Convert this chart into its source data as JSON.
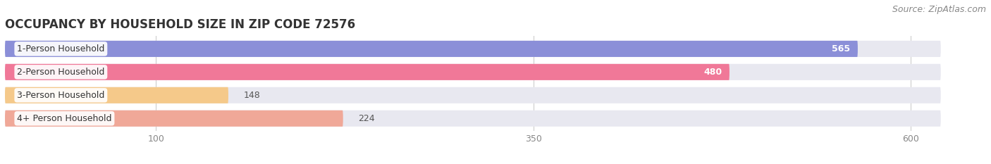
{
  "title": "OCCUPANCY BY HOUSEHOLD SIZE IN ZIP CODE 72576",
  "source": "Source: ZipAtlas.com",
  "categories": [
    "1-Person Household",
    "2-Person Household",
    "3-Person Household",
    "4+ Person Household"
  ],
  "values": [
    565,
    480,
    148,
    224
  ],
  "bar_colors": [
    "#8b8fd8",
    "#f07898",
    "#f5c98a",
    "#f0a898"
  ],
  "background_color": "#ffffff",
  "bar_bg_color": "#e8e8f0",
  "xlim_data": 620,
  "xlim_display": 650,
  "xticks": [
    100,
    350,
    600
  ],
  "title_fontsize": 12,
  "source_fontsize": 9,
  "label_fontsize": 9,
  "value_fontsize": 9,
  "tick_fontsize": 9
}
